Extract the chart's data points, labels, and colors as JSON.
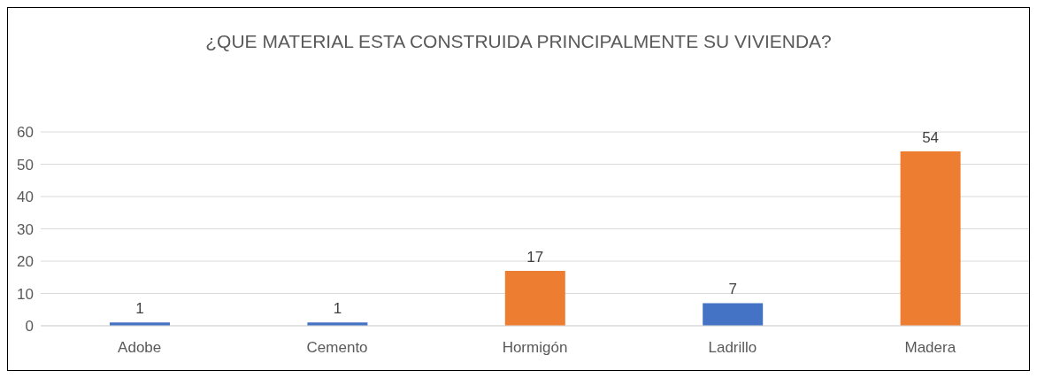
{
  "chart_data": {
    "type": "bar",
    "title": "¿QUE MATERIAL ESTA CONSTRUIDA PRINCIPALMENTE SU VIVIENDA?",
    "categories": [
      "Adobe",
      "Cemento",
      "Hormigón",
      "Ladrillo",
      "Madera"
    ],
    "values": [
      1,
      1,
      17,
      7,
      54
    ],
    "colors": [
      "#4472c4",
      "#4472c4",
      "#ed7d31",
      "#4472c4",
      "#ed7d31"
    ],
    "ylim": [
      0,
      60
    ],
    "yticks": [
      0,
      10,
      20,
      30,
      40,
      50,
      60
    ],
    "grid": "y",
    "data_labels": true
  }
}
